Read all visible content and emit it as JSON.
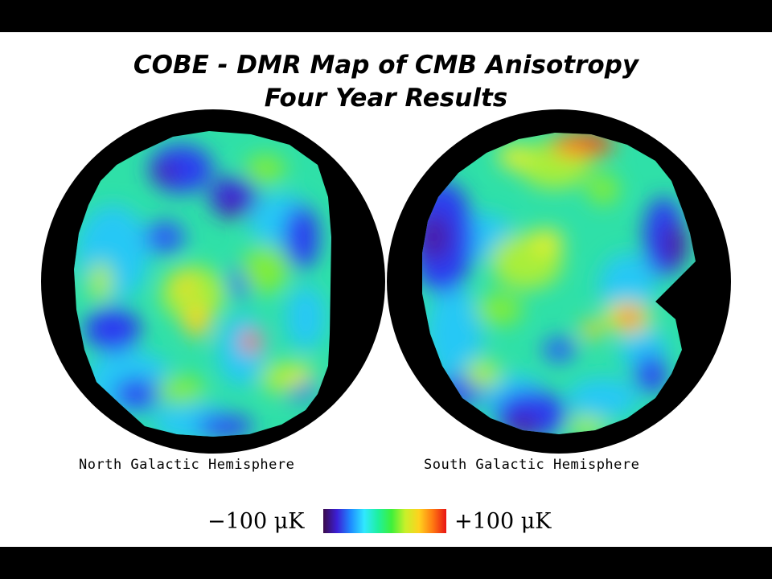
{
  "title": {
    "line1": "COBE - DMR Map of CMB Anisotropy",
    "line2": "Four Year Results"
  },
  "maps": [
    {
      "id": "north",
      "label": "North Galactic Hemisphere"
    },
    {
      "id": "south",
      "label": "South Galactic Hemisphere"
    }
  ],
  "colorbar": {
    "min_label": "−100 μK",
    "max_label": "+100 μK",
    "min_value": -100,
    "max_value": 100,
    "unit": "μK",
    "colors": [
      "#3b0a4a",
      "#3b1fd6",
      "#1e8bff",
      "#30e8ff",
      "#1ef0a0",
      "#3ff03a",
      "#c8f02a",
      "#ffd21e",
      "#ff7a12",
      "#e81414"
    ]
  },
  "colors": {
    "slide_background": "#000000",
    "content_background": "#ffffff",
    "map_background": "#000000"
  }
}
